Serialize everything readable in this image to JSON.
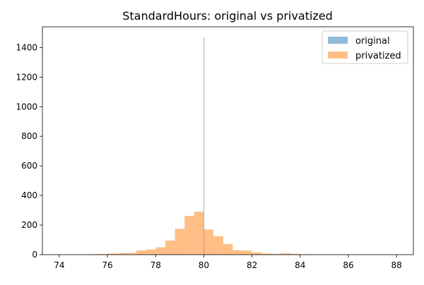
{
  "chart_data": {
    "type": "bar",
    "title": "StandardHours: original vs privatized",
    "xlabel": "",
    "ylabel": "",
    "xlim": [
      73.3,
      88.7
    ],
    "ylim": [
      0,
      1540
    ],
    "x_ticks": [
      74,
      76,
      78,
      80,
      82,
      84,
      86,
      88
    ],
    "y_ticks": [
      0,
      200,
      400,
      600,
      800,
      1000,
      1200,
      1400
    ],
    "legend_position": "top-right",
    "grid": false,
    "series": [
      {
        "name": "original",
        "color": "#1f77b4",
        "opacity": 0.5,
        "bins": [
          {
            "x0": 79.99,
            "x1": 80.01,
            "value": 1470
          }
        ]
      },
      {
        "name": "privatized",
        "color": "#ff7f0e",
        "opacity": 0.5,
        "bins": [
          {
            "x0": 74.8,
            "x1": 75.2,
            "value": 2
          },
          {
            "x0": 75.2,
            "x1": 75.6,
            "value": 3
          },
          {
            "x0": 75.6,
            "x1": 76.0,
            "value": 5
          },
          {
            "x0": 76.0,
            "x1": 76.4,
            "value": 8
          },
          {
            "x0": 76.4,
            "x1": 76.8,
            "value": 10
          },
          {
            "x0": 76.8,
            "x1": 77.2,
            "value": 12
          },
          {
            "x0": 77.2,
            "x1": 77.6,
            "value": 28
          },
          {
            "x0": 77.6,
            "x1": 78.0,
            "value": 35
          },
          {
            "x0": 78.0,
            "x1": 78.4,
            "value": 50
          },
          {
            "x0": 78.4,
            "x1": 78.8,
            "value": 95
          },
          {
            "x0": 78.8,
            "x1": 79.2,
            "value": 175
          },
          {
            "x0": 79.2,
            "x1": 79.6,
            "value": 262
          },
          {
            "x0": 79.6,
            "x1": 80.0,
            "value": 290
          },
          {
            "x0": 80.0,
            "x1": 80.4,
            "value": 170
          },
          {
            "x0": 80.4,
            "x1": 80.8,
            "value": 125
          },
          {
            "x0": 80.8,
            "x1": 81.2,
            "value": 72
          },
          {
            "x0": 81.2,
            "x1": 81.6,
            "value": 30
          },
          {
            "x0": 81.6,
            "x1": 82.0,
            "value": 28
          },
          {
            "x0": 82.0,
            "x1": 82.4,
            "value": 15
          },
          {
            "x0": 82.4,
            "x1": 82.8,
            "value": 8
          },
          {
            "x0": 82.8,
            "x1": 83.2,
            "value": 5
          },
          {
            "x0": 83.2,
            "x1": 83.6,
            "value": 10
          },
          {
            "x0": 83.6,
            "x1": 84.0,
            "value": 6
          },
          {
            "x0": 84.0,
            "x1": 84.4,
            "value": 3
          },
          {
            "x0": 84.4,
            "x1": 84.8,
            "value": 2
          }
        ]
      }
    ]
  }
}
